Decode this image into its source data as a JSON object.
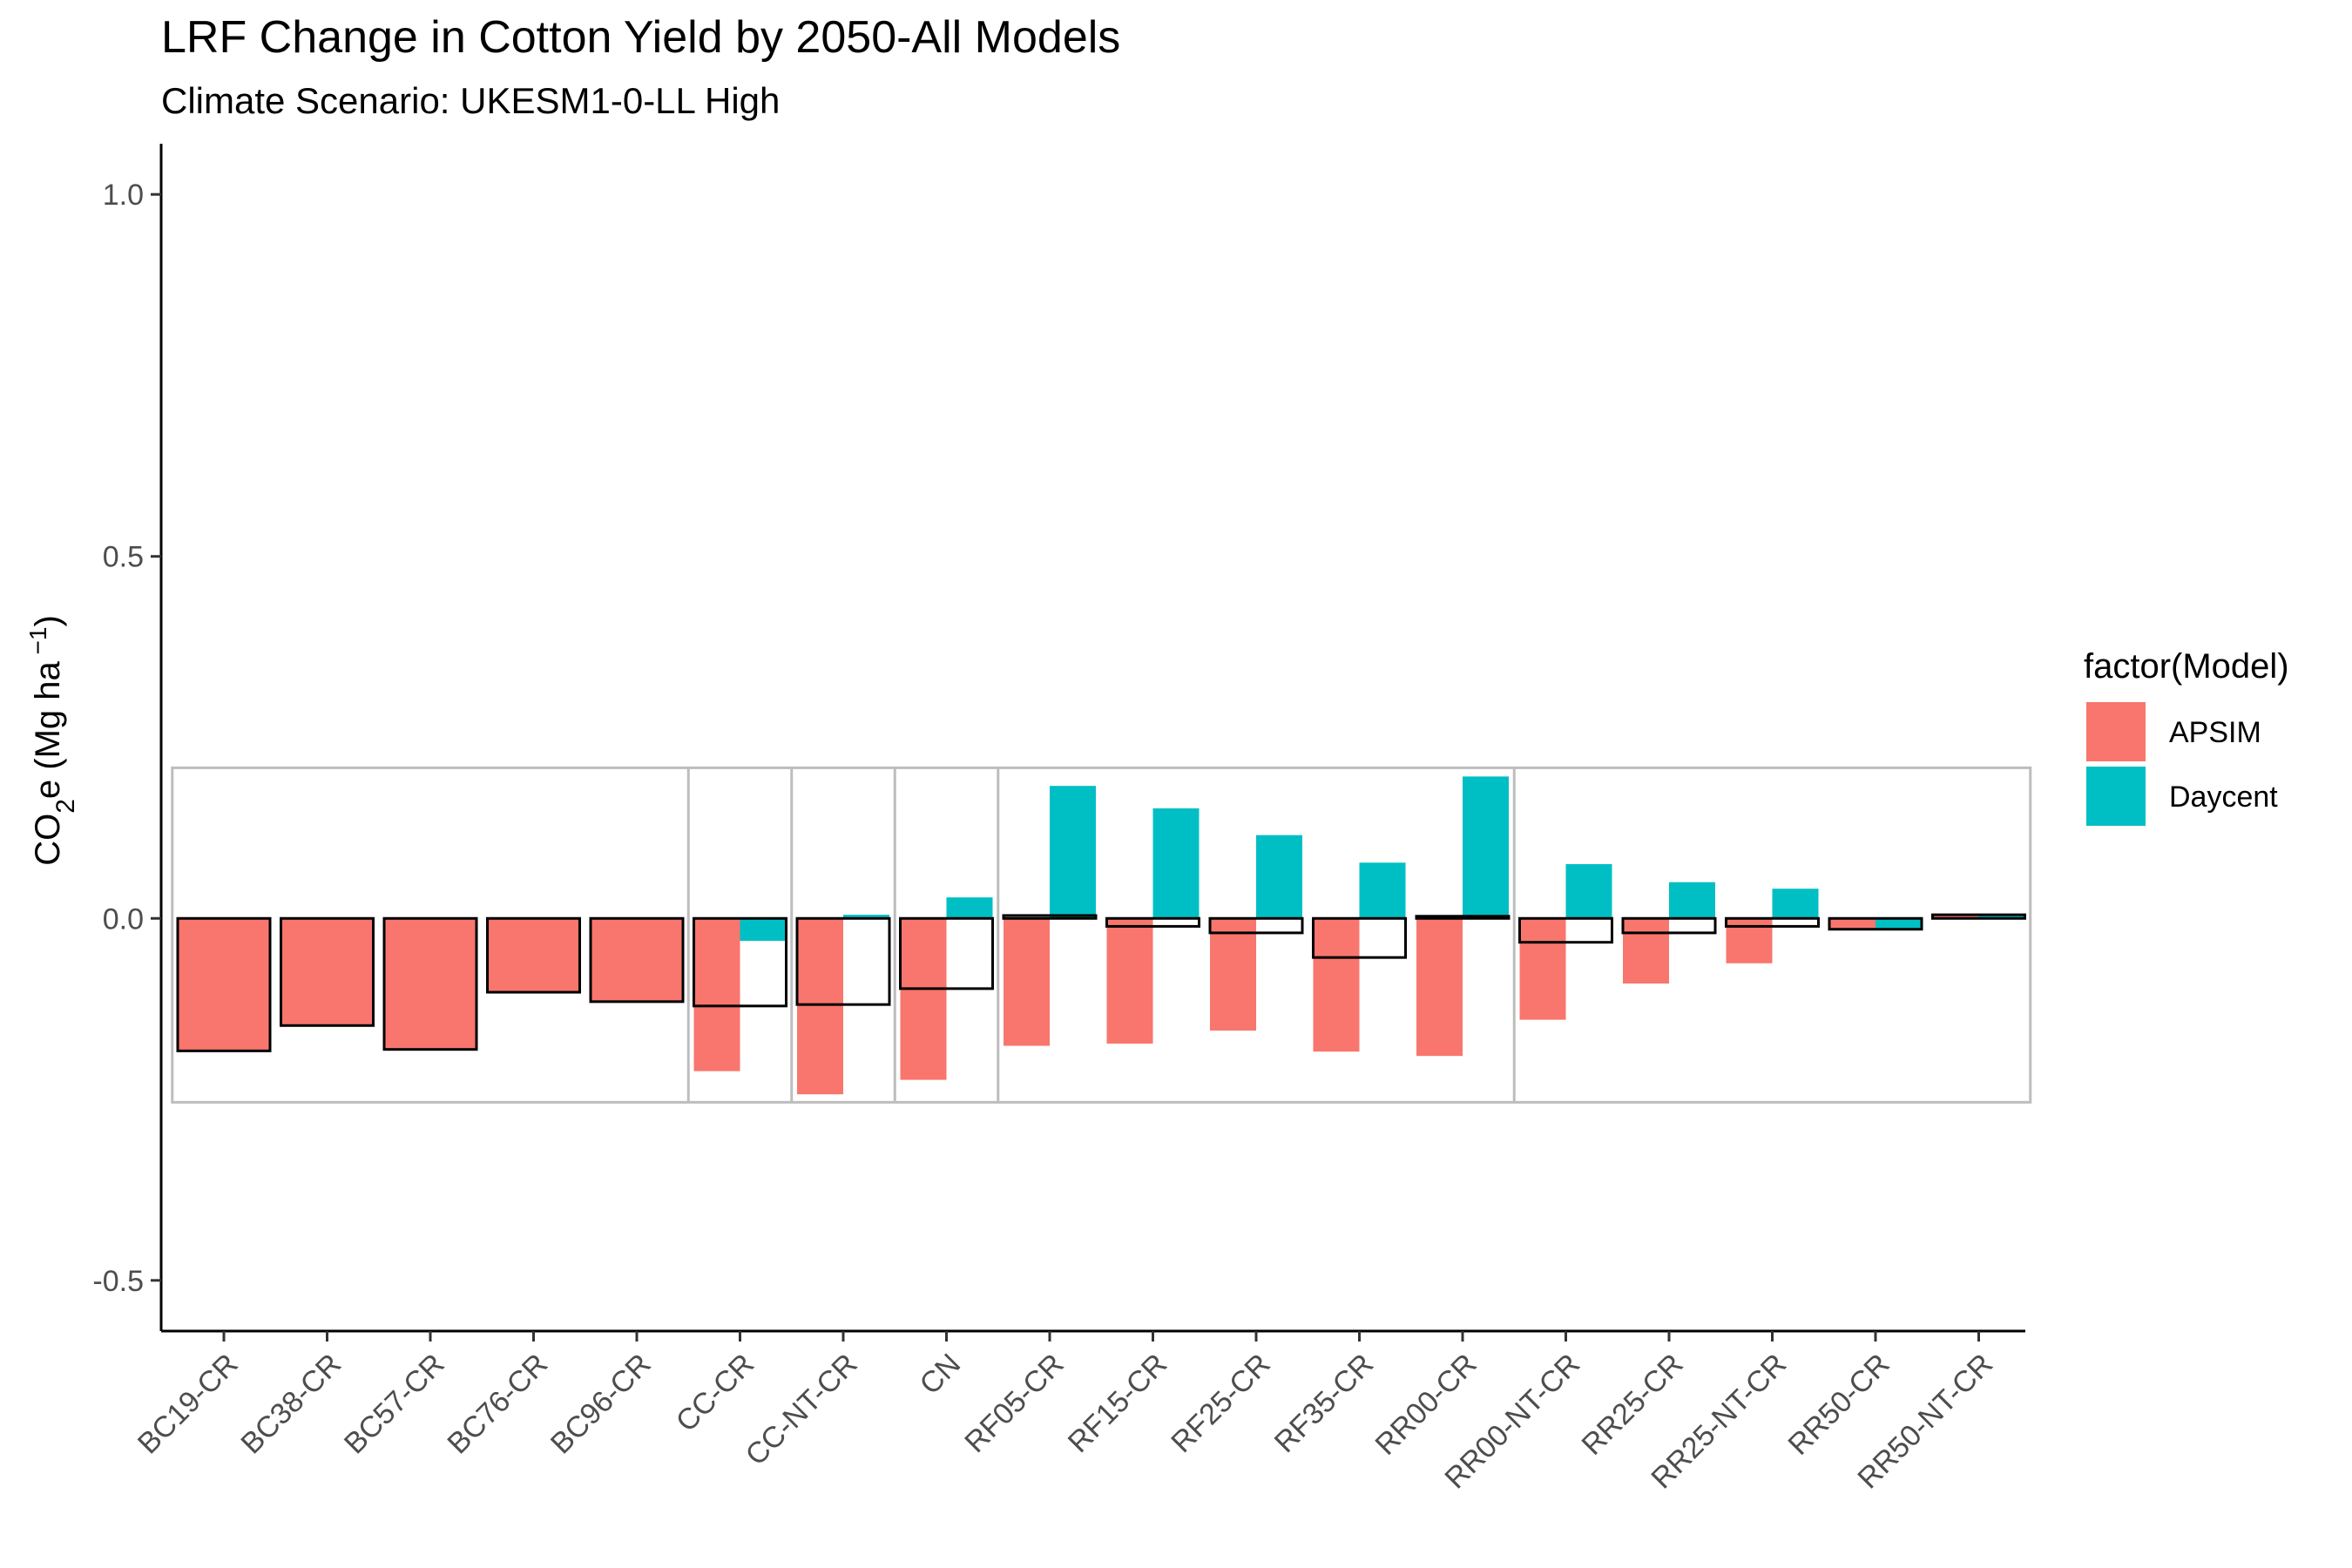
{
  "chart_data": {
    "type": "bar",
    "title": "LRF Change in Cotton Yield by 2050-All Models",
    "subtitle": "Climate Scenario: UKESM1-0-LL High",
    "ylabel": {
      "prefix": "CO",
      "sub": "2",
      "mid": "e (Mg ha",
      "sup": " −1",
      "suffix": ")"
    },
    "xlabel": "",
    "ylim": [
      -0.57,
      1.07
    ],
    "yticks": [
      -0.5,
      0.0,
      0.5,
      1.0
    ],
    "ytick_labels": [
      "-0.5",
      "0.0",
      "0.5",
      "1.0"
    ],
    "categories": [
      "BC19-CR",
      "BC38-CR",
      "BC57-CR",
      "BC76-CR",
      "BC96-CR",
      "CC-CR",
      "CC-NT-CR",
      "CN",
      "RF05-CR",
      "RF15-CR",
      "RF25-CR",
      "RF35-CR",
      "RR00-CR",
      "RR00-NT-CR",
      "RR25-CR",
      "RR25-NT-CR",
      "RR50-CR",
      "RR50-NT-CR"
    ],
    "series": [
      {
        "name": "APSIM",
        "color": "#F8766D",
        "values": [
          -0.183,
          -0.148,
          -0.181,
          -0.102,
          -0.115,
          -0.211,
          -0.243,
          -0.223,
          -0.176,
          -0.173,
          -0.155,
          -0.184,
          -0.19,
          -0.14,
          -0.09,
          -0.062,
          -0.015,
          0.005
        ]
      },
      {
        "name": "Daycent",
        "color": "#00BFC4",
        "values": [
          null,
          null,
          null,
          null,
          null,
          -0.031,
          0.005,
          0.029,
          0.183,
          0.152,
          0.115,
          0.077,
          0.196,
          0.075,
          0.05,
          0.041,
          -0.015,
          0.005
        ]
      }
    ],
    "mean_values": [
      -0.183,
      -0.148,
      -0.181,
      -0.102,
      -0.115,
      -0.121,
      -0.119,
      -0.097,
      0.004,
      -0.011,
      -0.02,
      -0.054,
      0.003,
      -0.033,
      -0.02,
      -0.011,
      -0.015,
      0.005
    ],
    "group_box_y_range": [
      -0.254,
      0.208
    ],
    "group_boundaries_after": [
      "BC96-CR",
      "CC-CR",
      "CC-NT-CR",
      "CN",
      "RR00-CR"
    ],
    "legend": {
      "title": "factor(Model)",
      "position": "right",
      "items": [
        {
          "label": "APSIM",
          "color": "#F8766D"
        },
        {
          "label": "Daycent",
          "color": "#00BFC4"
        }
      ]
    },
    "grid": false
  }
}
